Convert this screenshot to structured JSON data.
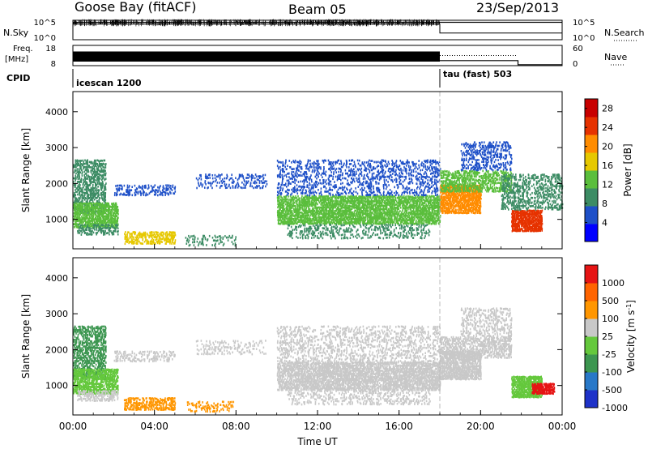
{
  "chart_data": [
    {
      "type": "line",
      "panel": "header-sky-search",
      "title": "Goose Bay (fitACF)",
      "beam": "Beam 05",
      "date": "23/Sep/2013",
      "left_label": "N.Sky",
      "right_label": "N.Search",
      "left_ticks": [
        "10^5",
        "10^0"
      ],
      "right_ticks": [
        "10^5",
        "10^0"
      ],
      "scale": "log",
      "series": [
        {
          "name": "N.Sky",
          "style": "solid",
          "x": [
            "00:00",
            "18:00",
            "18:00",
            "24:00"
          ],
          "values": [
            30000,
            30000,
            30000,
            30000
          ]
        },
        {
          "name": "N.Search",
          "style": "dotted",
          "x": [
            "00:00",
            "18:00",
            "18:00",
            "24:00"
          ],
          "values": [
            10000,
            10000,
            50,
            50
          ]
        }
      ]
    },
    {
      "type": "line",
      "panel": "header-freq-nave",
      "left_label_line1": "Freq.",
      "left_label_line2": "[MHz]",
      "right_label": "Nave",
      "left_ticks": [
        "18",
        "8"
      ],
      "right_ticks": [
        "60",
        "0"
      ],
      "series": [
        {
          "name": "Freq",
          "style": "solid",
          "x": [
            "00:00",
            "18:00"
          ],
          "values": [
            12,
            12
          ]
        },
        {
          "name": "Nave",
          "style": "dotted",
          "x": [
            "18:00",
            "21:50",
            "21:50",
            "24:00"
          ],
          "values": [
            15,
            15,
            3,
            3
          ]
        }
      ]
    },
    {
      "type": "table",
      "panel": "cpid",
      "label": "CPID",
      "entries": [
        {
          "start": "00:00",
          "text": "icescan 1200"
        },
        {
          "start": "18:00",
          "text": "tau (fast) 503"
        }
      ]
    },
    {
      "type": "heatmap",
      "panel": "power",
      "ylabel": "Slant Range [km]",
      "y_ticks": [
        "1000",
        "2000",
        "3000",
        "4000"
      ],
      "ylim": [
        180,
        4560
      ],
      "xlim": [
        "00:00",
        "24:00"
      ],
      "colorbar_label": "Power [dB]",
      "colorbar_ticks": [
        "4",
        "8",
        "12",
        "16",
        "20",
        "24",
        "28"
      ],
      "colorbar_range": [
        0,
        30
      ],
      "colors": [
        "#0000ff",
        "#1e50c8",
        "#3c8c64",
        "#5abe3c",
        "#e6c800",
        "#ff8c00",
        "#e63200",
        "#c80000"
      ],
      "regions": [
        {
          "t": [
            0.0,
            1.6
          ],
          "r": [
            1200,
            2700
          ],
          "v": 8,
          "d": 0.5
        },
        {
          "t": [
            0.0,
            2.2
          ],
          "r": [
            800,
            1500
          ],
          "v": 14,
          "d": 0.7
        },
        {
          "t": [
            0.2,
            2.2
          ],
          "r": [
            600,
            900
          ],
          "v": 10,
          "d": 0.4
        },
        {
          "t": [
            2.0,
            5.0
          ],
          "r": [
            1700,
            2000
          ],
          "v": 6,
          "d": 0.3
        },
        {
          "t": [
            2.5,
            5.0
          ],
          "r": [
            350,
            700
          ],
          "v": 16,
          "d": 0.5
        },
        {
          "t": [
            5.5,
            8.0
          ],
          "r": [
            300,
            600
          ],
          "v": 8,
          "d": 0.2
        },
        {
          "t": [
            6.0,
            9.5
          ],
          "r": [
            1900,
            2300
          ],
          "v": 5,
          "d": 0.2
        },
        {
          "t": [
            10.0,
            18.0
          ],
          "r": [
            900,
            1700
          ],
          "v": 14,
          "d": 0.7
        },
        {
          "t": [
            10.0,
            18.0
          ],
          "r": [
            1700,
            2700
          ],
          "v": 7,
          "d": 0.25
        },
        {
          "t": [
            10.5,
            17.5
          ],
          "r": [
            500,
            900
          ],
          "v": 8,
          "d": 0.25
        },
        {
          "t": [
            18.0,
            20.0
          ],
          "r": [
            1200,
            2000
          ],
          "v": 20,
          "d": 0.75
        },
        {
          "t": [
            18.0,
            21.5
          ],
          "r": [
            1800,
            2400
          ],
          "v": 12,
          "d": 0.5
        },
        {
          "t": [
            19.0,
            21.5
          ],
          "r": [
            2400,
            3200
          ],
          "v": 7,
          "d": 0.3
        },
        {
          "t": [
            21.5,
            23.0
          ],
          "r": [
            700,
            1300
          ],
          "v": 25,
          "d": 0.85
        },
        {
          "t": [
            21.0,
            24.0
          ],
          "r": [
            1300,
            2300
          ],
          "v": 8,
          "d": 0.35
        }
      ]
    },
    {
      "type": "heatmap",
      "panel": "velocity",
      "ylabel": "Slant Range [km]",
      "y_ticks": [
        "1000",
        "2000",
        "3000",
        "4000"
      ],
      "ylim": [
        180,
        4560
      ],
      "xlim": [
        "00:00",
        "24:00"
      ],
      "xlabel": "Time UT",
      "x_ticks": [
        "00:00",
        "04:00",
        "08:00",
        "12:00",
        "16:00",
        "20:00",
        "00:00"
      ],
      "colorbar_label": "Velocity [m s",
      "colorbar_label_exp": "-1",
      "colorbar_label_end": "]",
      "colorbar_ticks": [
        "1000",
        "500",
        "100",
        "25",
        "-25",
        "-100",
        "-500",
        "-1000"
      ],
      "colors": [
        "#1e32c8",
        "#2878c8",
        "#3c9650",
        "#64c83c",
        "#c8c8c8",
        "#ff9600",
        "#ff6400",
        "#e61414"
      ],
      "regions": [
        {
          "t": [
            0.0,
            1.6
          ],
          "r": [
            1200,
            2700
          ],
          "v": 2,
          "d": 0.5
        },
        {
          "t": [
            0.0,
            2.2
          ],
          "r": [
            800,
            1500
          ],
          "v": 3,
          "d": 0.7
        },
        {
          "t": [
            0.2,
            2.2
          ],
          "r": [
            600,
            900
          ],
          "v": 4,
          "d": 0.4
        },
        {
          "t": [
            2.0,
            5.0
          ],
          "r": [
            1700,
            2000
          ],
          "v": 4,
          "d": 0.3
        },
        {
          "t": [
            2.5,
            5.0
          ],
          "r": [
            350,
            700
          ],
          "v": 5,
          "d": 0.5
        },
        {
          "t": [
            5.5,
            8.0
          ],
          "r": [
            300,
            600
          ],
          "v": 5,
          "d": 0.2
        },
        {
          "t": [
            6.0,
            9.5
          ],
          "r": [
            1900,
            2300
          ],
          "v": 4,
          "d": 0.2
        },
        {
          "t": [
            10.0,
            18.0
          ],
          "r": [
            900,
            1700
          ],
          "v": 4,
          "d": 0.7
        },
        {
          "t": [
            10.0,
            18.0
          ],
          "r": [
            1700,
            2700
          ],
          "v": 4,
          "d": 0.25
        },
        {
          "t": [
            10.5,
            17.5
          ],
          "r": [
            500,
            900
          ],
          "v": 4,
          "d": 0.25
        },
        {
          "t": [
            18.0,
            20.0
          ],
          "r": [
            1200,
            2000
          ],
          "v": 4,
          "d": 0.75
        },
        {
          "t": [
            18.0,
            21.5
          ],
          "r": [
            1800,
            2400
          ],
          "v": 4,
          "d": 0.5
        },
        {
          "t": [
            19.0,
            21.5
          ],
          "r": [
            2400,
            3200
          ],
          "v": 4,
          "d": 0.3
        },
        {
          "t": [
            21.5,
            23.0
          ],
          "r": [
            700,
            1300
          ],
          "v": 3,
          "d": 0.85
        },
        {
          "t": [
            22.5,
            23.6
          ],
          "r": [
            800,
            1100
          ],
          "v": 7,
          "d": 0.85
        }
      ]
    }
  ]
}
